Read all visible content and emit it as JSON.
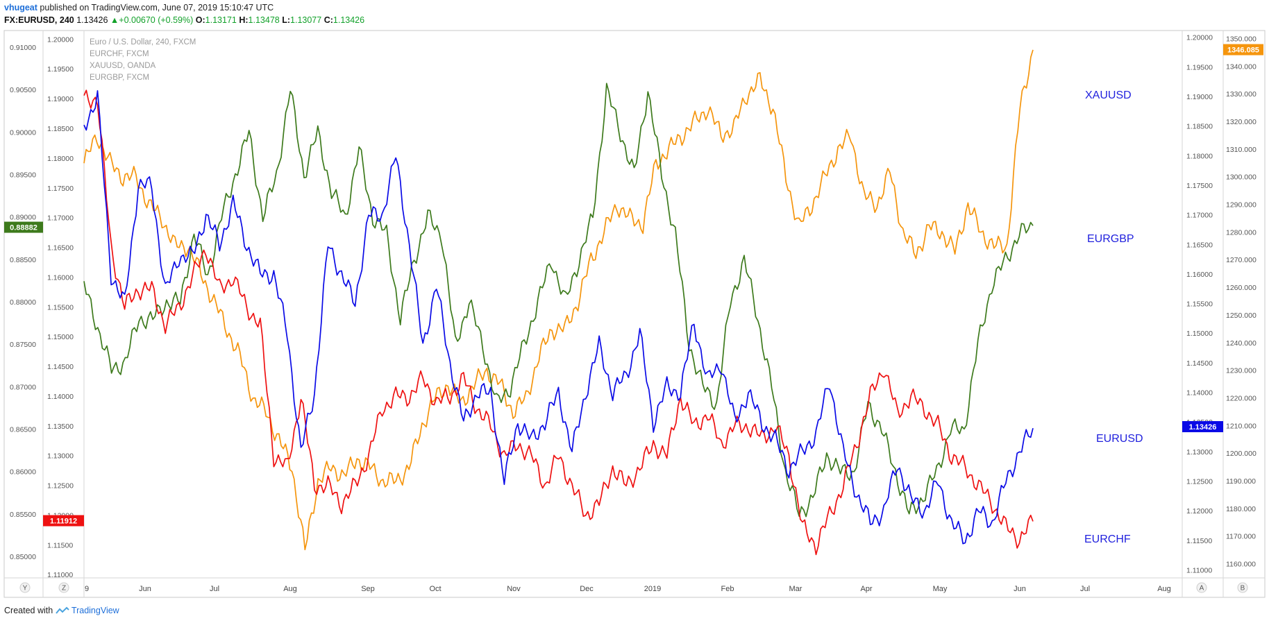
{
  "header": {
    "user": "vhugeat",
    "published": " published on TradingView.com, June 07, 2019 15:10:47 UTC",
    "symbol": "FX:EURUSD, 240",
    "price": "1.13426",
    "change": "+0.00670 (+0.59%)",
    "o_label": "O:",
    "o": "1.13171",
    "h_label": "H:",
    "h": "1.13478",
    "l_label": "L:",
    "l": "1.13077",
    "c_label": "C:",
    "c": "1.13426"
  },
  "legend": [
    "Euro / U.S. Dollar, 240, FXCM",
    "EURCHF, FXCM",
    "XAUUSD, OANDA",
    "EURGBP, FXCM"
  ],
  "annotations": [
    "XAUUSD",
    "EURGBP",
    "EURUSD",
    "EURCHF"
  ],
  "axis_buttons": {
    "far_left": "Y",
    "left": "Z",
    "right": "A",
    "far_right": "B"
  },
  "footer": {
    "created": "Created with",
    "brand": "TradingView"
  },
  "colors": {
    "eurusd": "#0a0ae6",
    "eurchf": "#ee1111",
    "xauusd": "#f5950d",
    "eurgbp": "#3d7a1c"
  },
  "chart_data": {
    "type": "line",
    "x_labels": [
      "9",
      "Jun",
      "Jul",
      "Aug",
      "Sep",
      "Oct",
      "Nov",
      "Dec",
      "2019",
      "Feb",
      "Mar",
      "Apr",
      "May",
      "Jun",
      "Jul",
      "Aug"
    ],
    "axes": {
      "eurgbp_axis": {
        "ticks": [
          "0.91000",
          "0.90500",
          "0.90000",
          "0.89500",
          "0.89000",
          "0.88500",
          "0.88000",
          "0.87500",
          "0.87000",
          "0.86500",
          "0.86000",
          "0.85500",
          "0.85000"
        ],
        "range": [
          0.8475,
          0.912
        ],
        "last_label": "0.88882",
        "last": 0.88882
      },
      "eurchf_axis": {
        "ticks": [
          "1.20000",
          "1.19500",
          "1.19000",
          "1.18500",
          "1.18000",
          "1.17500",
          "1.17000",
          "1.16500",
          "1.16000",
          "1.15500",
          "1.15000",
          "1.14500",
          "1.14000",
          "1.13500",
          "1.13000",
          "1.12500",
          "1.12000",
          "1.11500",
          "1.11000"
        ],
        "range": [
          1.1095,
          1.2015
        ],
        "last_label": "1.11912",
        "last": 1.11912
      },
      "eurusd_axis": {
        "ticks": [
          "1.20000",
          "1.19500",
          "1.19000",
          "1.18500",
          "1.18000",
          "1.17500",
          "1.17000",
          "1.16500",
          "1.16000",
          "1.15500",
          "1.15000",
          "1.14500",
          "1.14000",
          "1.13500",
          "1.13000",
          "1.12500",
          "1.12000",
          "1.11500",
          "1.11000"
        ],
        "range": [
          1.1087,
          1.2012
        ],
        "last_label": "1.13426",
        "last": 1.13426
      },
      "xauusd_axis": {
        "ticks": [
          "1350.000",
          "1340.000",
          "1330.000",
          "1320.000",
          "1310.000",
          "1300.000",
          "1290.000",
          "1280.000",
          "1270.000",
          "1260.000",
          "1250.000",
          "1240.000",
          "1230.000",
          "1220.000",
          "1210.000",
          "1200.000",
          "1190.000",
          "1180.000",
          "1170.000",
          "1160.000"
        ],
        "range": [
          1155,
          1353
        ],
        "last_label": "1346.085",
        "last": 1346.085
      }
    },
    "series": [
      {
        "name": "EURUSD",
        "values": [
          1.185,
          1.19,
          1.16,
          1.155,
          1.175,
          1.175,
          1.157,
          1.163,
          1.163,
          1.17,
          1.165,
          1.172,
          1.165,
          1.16,
          1.16,
          1.15,
          1.13,
          1.14,
          1.165,
          1.16,
          1.155,
          1.17,
          1.17,
          1.18,
          1.165,
          1.148,
          1.158,
          1.145,
          1.135,
          1.14,
          1.14,
          1.125,
          1.135,
          1.132,
          1.135,
          1.14,
          1.13,
          1.14,
          1.148,
          1.14,
          1.143,
          1.15,
          1.135,
          1.141,
          1.14,
          1.152,
          1.142,
          1.145,
          1.135,
          1.14,
          1.135,
          1.132,
          1.127,
          1.13,
          1.133,
          1.142,
          1.13,
          1.123,
          1.118,
          1.12,
          1.128,
          1.122,
          1.12,
          1.125,
          1.118,
          1.115,
          1.12,
          1.118,
          1.125,
          1.13,
          1.134
        ]
      },
      {
        "name": "EURCHF",
        "values": [
          1.19,
          1.19,
          1.165,
          1.155,
          1.158,
          1.158,
          1.152,
          1.155,
          1.16,
          1.165,
          1.158,
          1.16,
          1.155,
          1.152,
          1.13,
          1.128,
          1.14,
          1.125,
          1.125,
          1.122,
          1.125,
          1.13,
          1.138,
          1.14,
          1.14,
          1.143,
          1.139,
          1.14,
          1.143,
          1.138,
          1.135,
          1.13,
          1.132,
          1.13,
          1.125,
          1.13,
          1.125,
          1.12,
          1.122,
          1.128,
          1.125,
          1.128,
          1.132,
          1.13,
          1.14,
          1.135,
          1.137,
          1.132,
          1.135,
          1.135,
          1.133,
          1.135,
          1.13,
          1.118,
          1.115,
          1.12,
          1.125,
          1.132,
          1.14,
          1.145,
          1.137,
          1.14,
          1.138,
          1.135,
          1.13,
          1.128,
          1.125,
          1.122,
          1.118,
          1.116,
          1.119
        ]
      },
      {
        "name": "XAUUSD",
        "values": [
          1305,
          1315,
          1305,
          1300,
          1300,
          1290,
          1285,
          1275,
          1275,
          1265,
          1255,
          1245,
          1235,
          1220,
          1215,
          1205,
          1195,
          1165,
          1190,
          1195,
          1192,
          1198,
          1195,
          1190,
          1190,
          1195,
          1210,
          1220,
          1225,
          1218,
          1225,
          1230,
          1225,
          1215,
          1220,
          1235,
          1245,
          1245,
          1255,
          1270,
          1280,
          1290,
          1285,
          1283,
          1305,
          1310,
          1315,
          1320,
          1325,
          1315,
          1318,
          1330,
          1335,
          1325,
          1300,
          1282,
          1290,
          1300,
          1310,
          1315,
          1293,
          1290,
          1302,
          1280,
          1272,
          1282,
          1280,
          1273,
          1290,
          1280,
          1275,
          1275,
          1325,
          1346
        ]
      },
      {
        "name": "EURGBP",
        "values": [
          0.882,
          0.877,
          0.872,
          0.873,
          0.878,
          0.878,
          0.88,
          0.88,
          0.888,
          0.883,
          0.89,
          0.895,
          0.9,
          0.89,
          0.895,
          0.905,
          0.895,
          0.9,
          0.893,
          0.89,
          0.898,
          0.89,
          0.888,
          0.878,
          0.885,
          0.89,
          0.888,
          0.875,
          0.88,
          0.875,
          0.868,
          0.87,
          0.875,
          0.88,
          0.885,
          0.88,
          0.885,
          0.89,
          0.905,
          0.9,
          0.895,
          0.905,
          0.895,
          0.888,
          0.875,
          0.87,
          0.868,
          0.88,
          0.885,
          0.878,
          0.87,
          0.86,
          0.855,
          0.857,
          0.862,
          0.86,
          0.86,
          0.868,
          0.865,
          0.86,
          0.855,
          0.857,
          0.86,
          0.865,
          0.865,
          0.875,
          0.882,
          0.885,
          0.888,
          0.889
        ]
      }
    ]
  }
}
